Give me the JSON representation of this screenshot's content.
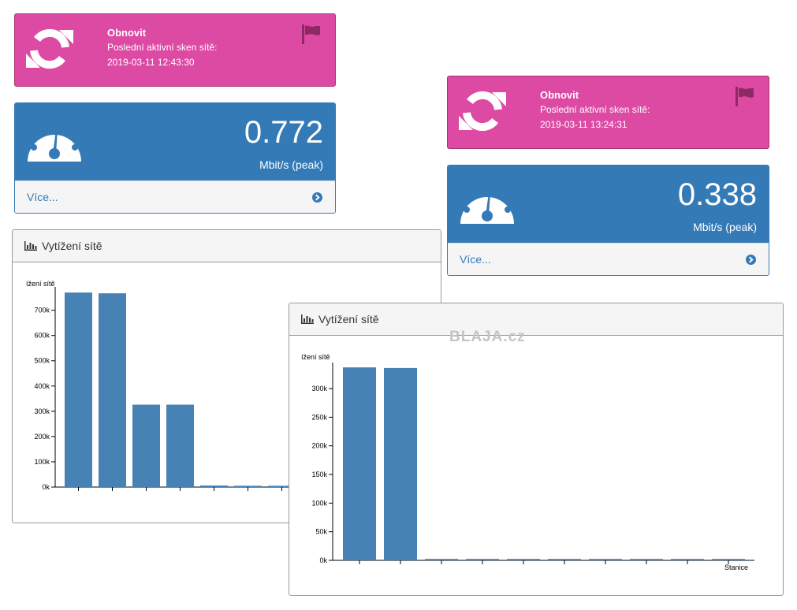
{
  "colors": {
    "accent_pink": "#dd4aa3",
    "primary_blue": "#337ab7",
    "bar_blue": "#4682b4"
  },
  "watermark": "BLAJA.cz",
  "left": {
    "scan": {
      "title": "Obnovit",
      "label": "Poslední aktivní sken sítě:",
      "time": "2019-03-11 12:43:30",
      "icons": [
        "refresh-icon",
        "flag-icon"
      ]
    },
    "speed": {
      "value": "0.772",
      "unit": "Mbit/s (peak)",
      "more": "Více...",
      "icons": [
        "dashboard-icon",
        "arrow-circle-right-icon"
      ]
    },
    "panel": {
      "title": "Vytížení sítě",
      "icon": "bar-chart-icon"
    }
  },
  "right": {
    "scan": {
      "title": "Obnovit",
      "label": "Poslední aktivní sken sítě:",
      "time": "2019-03-11 13:24:31",
      "icons": [
        "refresh-icon",
        "flag-icon"
      ]
    },
    "speed": {
      "value": "0.338",
      "unit": "Mbit/s (peak)",
      "more": "Více...",
      "icons": [
        "dashboard-icon",
        "arrow-circle-right-icon"
      ]
    },
    "panel": {
      "title": "Vytížení sítě",
      "icon": "bar-chart-icon"
    }
  },
  "chart_data": [
    {
      "type": "bar",
      "ylabel": "řízení sítě",
      "ylabel_visible": "ížení sítě",
      "xlabel": "",
      "yticks": [
        "0k",
        "100k",
        "200k",
        "300k",
        "400k",
        "500k",
        "600k",
        "700k"
      ],
      "ylim": [
        0,
        780000
      ],
      "values": [
        770000,
        767000,
        326000,
        326000,
        6000,
        5000,
        5000
      ],
      "grid": false
    },
    {
      "type": "bar",
      "ylabel": "řízení sítě",
      "ylabel_visible": "ížení sítě",
      "xlabel": "Stanice",
      "yticks": [
        "0k",
        "50k",
        "100k",
        "150k",
        "200k",
        "250k",
        "300k"
      ],
      "ylim": [
        0,
        340000
      ],
      "values": [
        337000,
        336000,
        2500,
        2500,
        2500,
        2500,
        2500,
        2500,
        2500,
        2500
      ],
      "grid": false
    }
  ]
}
